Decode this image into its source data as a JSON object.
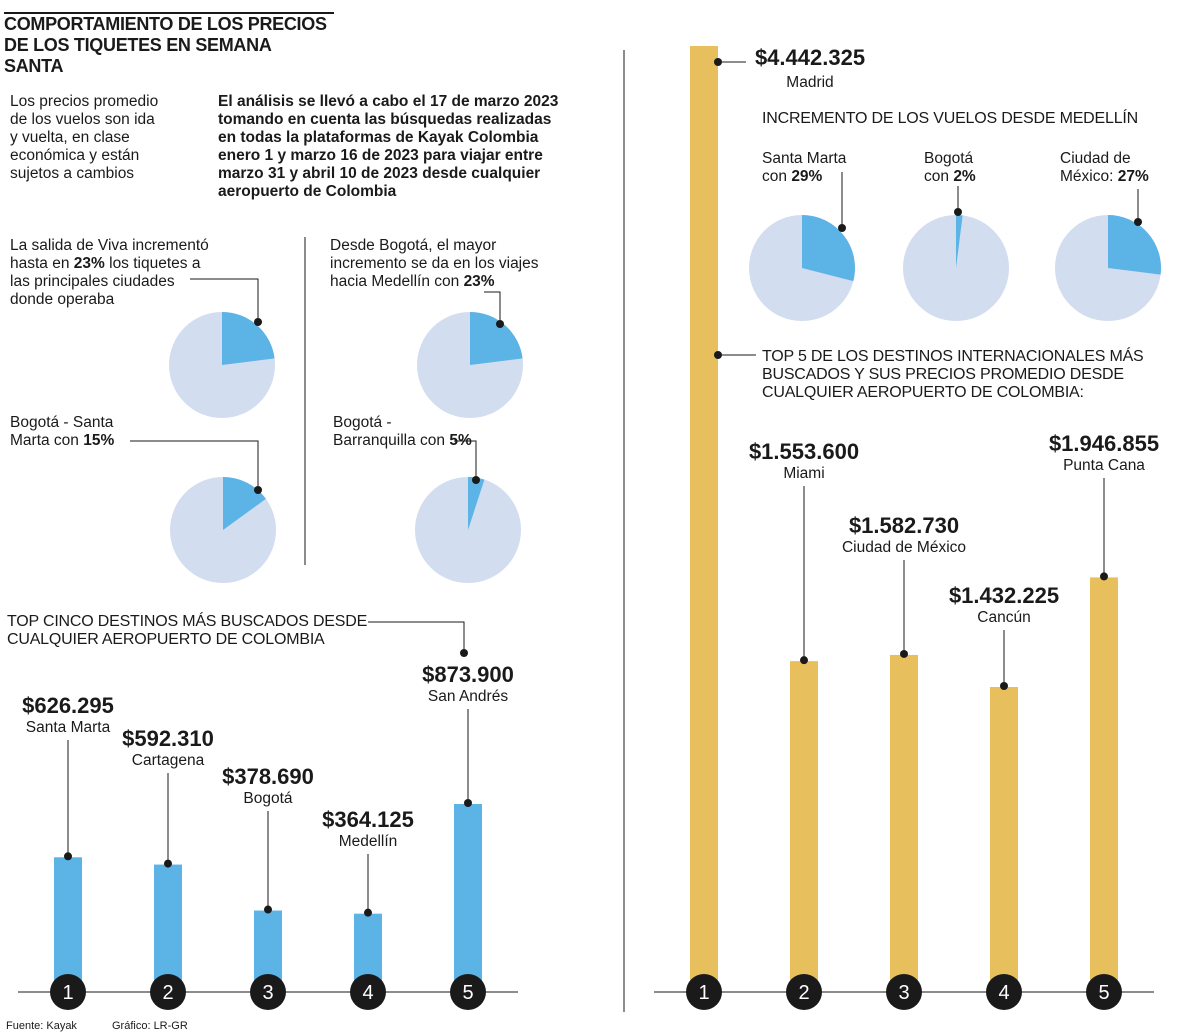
{
  "title": [
    "COMPORTAMIENTO DE LOS PRECIOS",
    "DE LOS TIQUETES EN SEMANA SANTA"
  ],
  "intro": {
    "note": [
      "Los precios promedio",
      "de los vuelos son ida",
      "y vuelta, en clase",
      "económica y están",
      "sujetos a cambios"
    ],
    "analysis": [
      "El análisis se llevó a cabo el 17 de marzo 2023",
      "tomando en cuenta las búsquedas realizadas",
      "en todas la plataformas de Kayak Colombia",
      "enero 1 y marzo 16 de 2023 para viajar entre",
      "marzo 31 y abril 10 de 2023 desde cualquier",
      "aeropuerto de Colombia"
    ]
  },
  "pie_texts": {
    "viva": {
      "l1": "La salida de Viva incrementó",
      "l2a": "hasta en ",
      "l2b": "23%",
      "l2c": " los tiquetes a",
      "l3": "las principales ciudades",
      "l4": "donde operaba"
    },
    "bogota_medellin": {
      "l1": "Desde Bogotá, el mayor",
      "l2": "incremento se da en los viajes",
      "l3a": "hacia Medellín con ",
      "l3b": "23%"
    },
    "bogota_santa_marta": {
      "l1": "Bogotá - Santa",
      "l2a": "Marta con ",
      "l2b": "15%"
    },
    "bogota_barranquilla": {
      "l1": "Bogotá -",
      "l2a": "Barranquilla con ",
      "l2b": "5%"
    }
  },
  "medellin": {
    "title": "INCREMENTO DE LOS VUELOS DESDE MEDELLÍN",
    "santa_marta": {
      "l1": "Santa Marta",
      "l2a": "con ",
      "l2b": "29%"
    },
    "bogota": {
      "l1": "Bogotá",
      "l2a": "con ",
      "l2b": "2%"
    },
    "cdmx": {
      "l1": "Ciudad de",
      "l2a": "México: ",
      "l2b": "27%"
    }
  },
  "domestic": {
    "title": [
      "TOP CINCO DESTINOS MÁS BUSCADOS DESDE",
      "CUALQUIER AEROPUERTO DE COLOMBIA"
    ]
  },
  "international": {
    "title": [
      "TOP 5 DE LOS DESTINOS INTERNACIONALES MÁS",
      "BUSCADOS Y SUS PRECIOS PROMEDIO DESDE",
      "CUALQUIER AEROPUERTO DE COLOMBIA:"
    ]
  },
  "footer": {
    "source": "Fuente: Kayak",
    "graphic": "Gráfico: LR-GR"
  },
  "colors": {
    "blue": "#5cb3e6",
    "pie_bg": "#d2ddf0",
    "gold": "#e7bf5c",
    "ink": "#1a1a1a"
  },
  "chart_data": [
    {
      "type": "pie",
      "name": "viva",
      "title": "La salida de Viva incrementó hasta en 23% los tiquetes a las principales ciudades donde operaba",
      "labels": [
        "Incremento",
        "Resto"
      ],
      "values": [
        23,
        77
      ]
    },
    {
      "type": "pie",
      "name": "bogota_medellin",
      "title": "Desde Bogotá, el mayor incremento se da en los viajes hacia Medellín con 23%",
      "labels": [
        "Incremento",
        "Resto"
      ],
      "values": [
        23,
        77
      ]
    },
    {
      "type": "pie",
      "name": "bogota_santa_marta",
      "title": "Bogotá - Santa Marta con 15%",
      "labels": [
        "Incremento",
        "Resto"
      ],
      "values": [
        15,
        85
      ]
    },
    {
      "type": "pie",
      "name": "bogota_barranquilla",
      "title": "Bogotá - Barranquilla con 5%",
      "labels": [
        "Incremento",
        "Resto"
      ],
      "values": [
        5,
        95
      ]
    },
    {
      "type": "pie",
      "name": "medellin_santa_marta",
      "title": "Santa Marta con 29%",
      "labels": [
        "Incremento",
        "Resto"
      ],
      "values": [
        29,
        71
      ]
    },
    {
      "type": "pie",
      "name": "medellin_bogota",
      "title": "Bogotá con 2%",
      "labels": [
        "Incremento",
        "Resto"
      ],
      "values": [
        2,
        98
      ]
    },
    {
      "type": "pie",
      "name": "medellin_cdmx",
      "title": "Ciudad de México: 27%",
      "labels": [
        "Incremento",
        "Resto"
      ],
      "values": [
        27,
        73
      ]
    },
    {
      "type": "bar",
      "name": "domestic",
      "title": "TOP CINCO DESTINOS MÁS BUSCADOS DESDE CUALQUIER AEROPUERTO DE COLOMBIA",
      "ranks": [
        "1",
        "2",
        "3",
        "4",
        "5"
      ],
      "categories": [
        "Santa Marta",
        "Cartagena",
        "Bogotá",
        "Medellín",
        "San Andrés"
      ],
      "values": [
        626295,
        592310,
        378690,
        364125,
        873900
      ],
      "labels": [
        "$626.295",
        "$592.310",
        "$378.690",
        "$364.125",
        "$873.900"
      ],
      "ylim": [
        0,
        1000000
      ]
    },
    {
      "type": "bar",
      "name": "international",
      "title": "TOP 5 DE LOS DESTINOS INTERNACIONALES MÁS BUSCADOS Y SUS PRECIOS PROMEDIO DESDE CUALQUIER AEROPUERTO DE COLOMBIA",
      "ranks": [
        "1",
        "2",
        "3",
        "4",
        "5"
      ],
      "categories": [
        "Madrid",
        "Miami",
        "Ciudad de México",
        "Cancún",
        "Punta Cana"
      ],
      "values": [
        4442325,
        1553600,
        1582730,
        1432225,
        1946855
      ],
      "labels": [
        "$4.442.325",
        "$1.553.600",
        "$1.582.730",
        "$1.432.225",
        "$1.946.855"
      ],
      "ylim": [
        0,
        4442325
      ]
    }
  ]
}
